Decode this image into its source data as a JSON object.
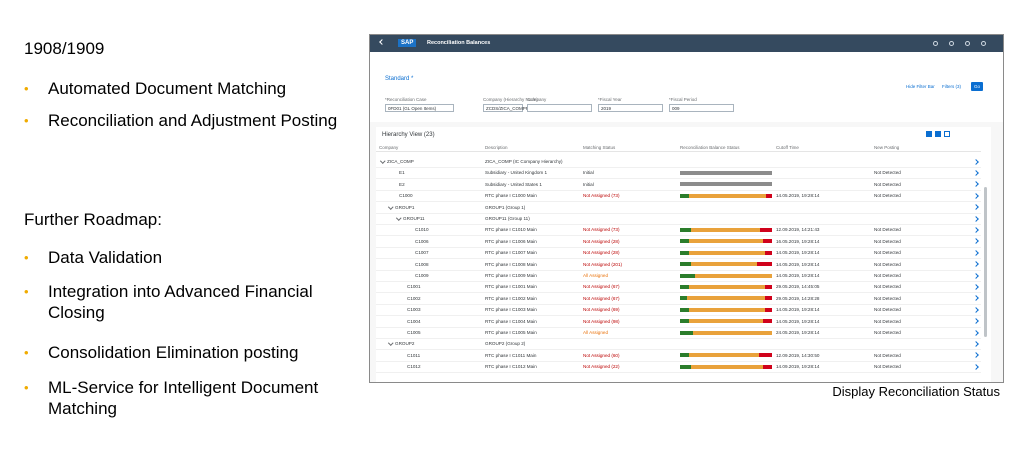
{
  "slide": {
    "heading": "1908/1909",
    "bullets": [
      "Automated Document Matching",
      "Reconciliation and Adjustment Posting"
    ],
    "roadmap_title": "Further Roadmap:",
    "roadmap_bullets": [
      "Data Validation",
      "Integration into Advanced Financial Closing",
      "Consolidation Elimination posting",
      "ML-Service for Intelligent Document Matching"
    ],
    "caption": "Display Reconciliation Status"
  },
  "app": {
    "logo": "SAP",
    "title": "Reconciliation Balances",
    "variant": "Standard *",
    "filters": [
      {
        "label": "*Reconciliation Case",
        "value": "0FD01 (GL Open Items)"
      },
      {
        "label": "Company (Hierarchy Node)",
        "value": "ZCDS/ZICA_COMPR..."
      },
      {
        "label": "Company"
      },
      {
        "label": "*Fiscal Year",
        "value": "2019"
      },
      {
        "label": "*Fiscal Period",
        "value": "009"
      }
    ],
    "buttons": [
      "Hide Filter Bar",
      "Filters (3)",
      "Go"
    ],
    "table_title": "Hierarchy View (23)",
    "columns": [
      "Company",
      "Description",
      "Matching Status",
      "Reconciliation Balance Status",
      "Cutoff Time",
      "New Posting"
    ],
    "rows": [
      {
        "company": "ZICA_COMP",
        "description": "ZICA_COMP (IC Company Hierarchy)"
      },
      {
        "company": "E1",
        "description": "Subsidiary - United Kingdom 1",
        "matching_status": "Initial",
        "new_posting": "Not Detected"
      },
      {
        "company": "E2",
        "description": "Subsidiary - United States 1",
        "matching_status": "Initial",
        "new_posting": "Not Detected"
      },
      {
        "company": "C1000",
        "description": "RTC phase I C1000 Main",
        "matching_status": "Not Assigned (73)",
        "cutoff_time": "14.05.2019, 19:28:14",
        "new_posting": "Not Detected"
      },
      {
        "company": "GROUP1",
        "description": "GROUP1 (Group 1)"
      },
      {
        "company": "GROUP11",
        "description": "GROUP11 (Group 11)"
      },
      {
        "company": "C1010",
        "description": "RTC phase I C1010 Main",
        "matching_status": "Not Assigned (73)",
        "cutoff_time": "12.09.2019, 14:21:43",
        "new_posting": "Not Detected"
      },
      {
        "company": "C1006",
        "description": "RTC phase I C1006 Main",
        "matching_status": "Not Assigned (28)",
        "cutoff_time": "16.05.2019, 19:28:14",
        "new_posting": "Not Detected"
      },
      {
        "company": "C1007",
        "description": "RTC phase I C1007 Main",
        "matching_status": "Not Assigned (28)",
        "cutoff_time": "14.05.2019, 19:28:14",
        "new_posting": "Not Detected"
      },
      {
        "company": "C1008",
        "description": "RTC phase I C1008 Main",
        "matching_status": "Not Assigned (201)",
        "cutoff_time": "14.05.2019, 19:28:14",
        "new_posting": "Not Detected"
      },
      {
        "company": "C1009",
        "description": "RTC phase I C1009 Main",
        "matching_status": "All Assigned",
        "cutoff_time": "14.05.2019, 19:28:14",
        "new_posting": "Not Detected"
      },
      {
        "company": "C1001",
        "description": "RTC phase I C1001 Main",
        "matching_status": "Not Assigned (67)",
        "cutoff_time": "29.05.2019, 14:45:05",
        "new_posting": "Not Detected"
      },
      {
        "company": "C1002",
        "description": "RTC phase I C1002 Main",
        "matching_status": "Not Assigned (67)",
        "cutoff_time": "29.05.2019, 14:28:28",
        "new_posting": "Not Detected"
      },
      {
        "company": "C1003",
        "description": "RTC phase I C1003 Main",
        "matching_status": "Not Assigned (69)",
        "cutoff_time": "14.05.2019, 19:28:14",
        "new_posting": "Not Detected"
      },
      {
        "company": "C1004",
        "description": "RTC phase I C1004 Main",
        "matching_status": "Not Assigned (98)",
        "cutoff_time": "14.05.2019, 19:28:14",
        "new_posting": "Not Detected"
      },
      {
        "company": "C1005",
        "description": "RTC phase I C1005 Main",
        "matching_status": "All Assigned",
        "cutoff_time": "24.05.2019, 19:28:14",
        "new_posting": "Not Detected"
      },
      {
        "company": "GROUP2",
        "description": "GROUP2 (Group 2)"
      },
      {
        "company": "C1011",
        "description": "RTC phase I C1011 Main",
        "matching_status": "Not Assigned (60)",
        "cutoff_time": "12.09.2019, 14:30:50",
        "new_posting": "Not Detected"
      },
      {
        "company": "C1012",
        "description": "RTC phase I C1012 Main",
        "matching_status": "Not Assigned (22)",
        "cutoff_time": "14.09.2019, 19:28:14",
        "new_posting": "Not Detected"
      }
    ]
  }
}
